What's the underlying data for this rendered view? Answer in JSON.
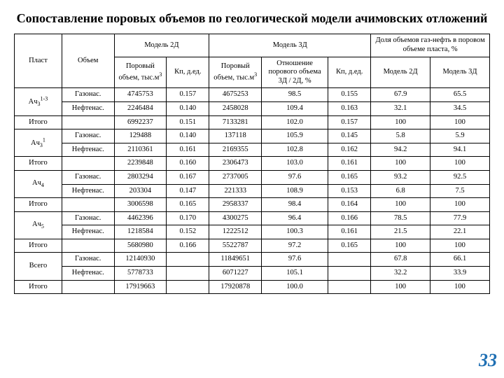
{
  "title": "Сопоставление поровых объемов по геологической модели ачимовских отложений",
  "page_number": "33",
  "col_widths_pct": [
    10,
    11,
    11,
    9,
    11,
    14,
    9,
    12.5,
    12.5
  ],
  "headers": {
    "group_2d": "Модель 2Д",
    "group_3d": "Модель 3Д",
    "share_group": "Доля объемов газ-нефть в поровом объеме пласта, %",
    "plast": "Пласт",
    "obj": "Объем",
    "pore_vol": "Поровый объем, тыс.м",
    "pore_sup": "3",
    "kp": "Кп, д.ед.",
    "ratio": "Отношение порового объема 3Д / 2Д, %",
    "m2d": "Модель 2Д",
    "m3d": "Модель 3Д"
  },
  "layers": [
    {
      "name_parts": [
        "Ач",
        "3",
        "1-3"
      ],
      "rows": [
        [
          "Газонас.",
          "4745753",
          "0.157",
          "4675253",
          "98.5",
          "0.155",
          "67.9",
          "65.5"
        ],
        [
          "Нефтенас.",
          "2246484",
          "0.140",
          "2458028",
          "109.4",
          "0.163",
          "32.1",
          "34.5"
        ]
      ],
      "total": [
        "6992237",
        "0.151",
        "7133281",
        "102.0",
        "0.157",
        "100",
        "100"
      ]
    },
    {
      "name_parts": [
        "Ач",
        "3",
        "1"
      ],
      "rows": [
        [
          "Газонас.",
          "129488",
          "0.140",
          "137118",
          "105.9",
          "0.145",
          "5.8",
          "5.9"
        ],
        [
          "Нефтенас.",
          "2110361",
          "0.161",
          "2169355",
          "102.8",
          "0.162",
          "94.2",
          "94.1"
        ]
      ],
      "total": [
        "2239848",
        "0.160",
        "2306473",
        "103.0",
        "0.161",
        "100",
        "100"
      ]
    },
    {
      "name_parts": [
        "Ач",
        "4",
        ""
      ],
      "rows": [
        [
          "Газонас.",
          "2803294",
          "0.167",
          "2737005",
          "97.6",
          "0.165",
          "93.2",
          "92.5"
        ],
        [
          "Нефтенас.",
          "203304",
          "0.147",
          "221333",
          "108.9",
          "0.153",
          "6.8",
          "7.5"
        ]
      ],
      "total": [
        "3006598",
        "0.165",
        "2958337",
        "98.4",
        "0.164",
        "100",
        "100"
      ]
    },
    {
      "name_parts": [
        "Ач",
        "5",
        ""
      ],
      "rows": [
        [
          "Газонас.",
          "4462396",
          "0.170",
          "4300275",
          "96.4",
          "0.166",
          "78.5",
          "77.9"
        ],
        [
          "Нефтенас.",
          "1218584",
          "0.152",
          "1222512",
          "100.3",
          "0.161",
          "21.5",
          "22.1"
        ]
      ],
      "total": [
        "5680980",
        "0.166",
        "5522787",
        "97.2",
        "0.165",
        "100",
        "100"
      ]
    }
  ],
  "grand": {
    "label": "Всего",
    "rows": [
      [
        "Газонас.",
        "12140930",
        "",
        "11849651",
        "97.6",
        "",
        "67.8",
        "66.1"
      ],
      [
        "Нефтенас.",
        "5778733",
        "",
        "6071227",
        "105.1",
        "",
        "32.2",
        "33.9"
      ]
    ],
    "total": [
      "17919663",
      "",
      "17920878",
      "100.0",
      "",
      "100",
      "100"
    ]
  },
  "itogo": "Итого"
}
